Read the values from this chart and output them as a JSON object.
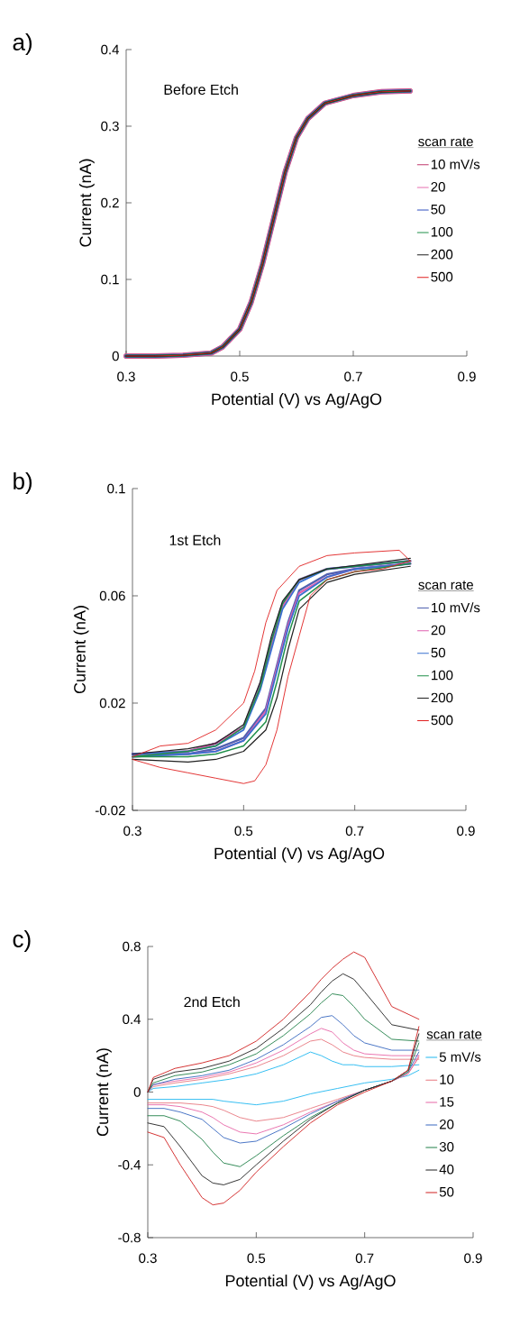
{
  "chart_data": [
    {
      "type": "line",
      "title": "a)",
      "xlabel": "Potential (V) vs Ag/AgO",
      "ylabel": "Current (nA)",
      "legend_title": "scan rate",
      "legend": "right",
      "annotations": [
        "Before Etch"
      ],
      "xlim": [
        0.3,
        0.9
      ],
      "xticks": [
        0.3,
        0.5,
        0.7,
        0.9
      ],
      "ylim": [
        0,
        0.4
      ],
      "yticks": [
        0,
        0.1,
        0.2,
        0.3,
        0.4
      ],
      "x": [
        0.3,
        0.35,
        0.4,
        0.45,
        0.47,
        0.5,
        0.52,
        0.54,
        0.56,
        0.58,
        0.6,
        0.62,
        0.65,
        0.7,
        0.75,
        0.8
      ],
      "series": [
        {
          "name": "10 mV/s",
          "color": "#c03a6e",
          "values": [
            0,
            0,
            0.001,
            0.004,
            0.012,
            0.035,
            0.07,
            0.12,
            0.18,
            0.24,
            0.285,
            0.31,
            0.33,
            0.34,
            0.345,
            0.346
          ]
        },
        {
          "name": "20",
          "color": "#e870b0",
          "values": [
            0,
            0,
            0.001,
            0.004,
            0.012,
            0.035,
            0.07,
            0.12,
            0.18,
            0.24,
            0.285,
            0.31,
            0.33,
            0.34,
            0.345,
            0.346
          ]
        },
        {
          "name": "50",
          "color": "#3050c0",
          "values": [
            0,
            0,
            0.001,
            0.004,
            0.012,
            0.035,
            0.07,
            0.12,
            0.18,
            0.24,
            0.285,
            0.31,
            0.33,
            0.34,
            0.345,
            0.346
          ]
        },
        {
          "name": "100",
          "color": "#20904a",
          "values": [
            0,
            0,
            0.001,
            0.004,
            0.012,
            0.035,
            0.07,
            0.12,
            0.18,
            0.24,
            0.285,
            0.31,
            0.33,
            0.34,
            0.345,
            0.346
          ]
        },
        {
          "name": "200",
          "color": "#202020",
          "values": [
            0,
            0,
            0.001,
            0.004,
            0.012,
            0.035,
            0.07,
            0.12,
            0.18,
            0.24,
            0.285,
            0.31,
            0.33,
            0.34,
            0.345,
            0.346
          ]
        },
        {
          "name": "500",
          "color": "#e02020",
          "values": [
            0,
            0,
            0.001,
            0.004,
            0.012,
            0.035,
            0.07,
            0.12,
            0.18,
            0.24,
            0.285,
            0.31,
            0.33,
            0.34,
            0.345,
            0.346
          ]
        }
      ]
    },
    {
      "type": "line",
      "title": "b)",
      "xlabel": "Potential (V) vs Ag/AgO",
      "ylabel": "Current (nA)",
      "legend_title": "scan rate",
      "legend": "right",
      "annotations": [
        "1st Etch"
      ],
      "xlim": [
        0.3,
        0.9
      ],
      "xticks": [
        0.3,
        0.5,
        0.7,
        0.9
      ],
      "ylim": [
        -0.02,
        0.1
      ],
      "yticks": [
        -0.02,
        0.02,
        0.06,
        0.1
      ],
      "series": [
        {
          "name": "10 mV/s",
          "color": "#5060b0",
          "x": [
            0.3,
            0.4,
            0.45,
            0.5,
            0.53,
            0.55,
            0.57,
            0.6,
            0.65,
            0.8
          ],
          "values": [
            0.001,
            0.002,
            0.005,
            0.011,
            0.027,
            0.043,
            0.057,
            0.066,
            0.07,
            0.073
          ]
        },
        {
          "color": "#5060b0",
          "x": [
            0.8,
            0.7,
            0.65,
            0.6,
            0.58,
            0.56,
            0.54,
            0.5,
            0.45,
            0.4,
            0.3
          ],
          "values": [
            0.072,
            0.07,
            0.068,
            0.062,
            0.05,
            0.034,
            0.018,
            0.007,
            0.003,
            0.001,
            0.001
          ]
        },
        {
          "name": "20",
          "color": "#e060b0",
          "x": [
            0.3,
            0.4,
            0.45,
            0.5,
            0.53,
            0.55,
            0.57,
            0.6,
            0.65,
            0.8
          ],
          "values": [
            0.001,
            0.002,
            0.005,
            0.011,
            0.026,
            0.042,
            0.056,
            0.066,
            0.07,
            0.073
          ]
        },
        {
          "color": "#e060b0",
          "x": [
            0.8,
            0.7,
            0.65,
            0.6,
            0.58,
            0.56,
            0.54,
            0.5,
            0.45,
            0.4,
            0.3
          ],
          "values": [
            0.072,
            0.07,
            0.067,
            0.061,
            0.049,
            0.033,
            0.017,
            0.006,
            0.002,
            0.001,
            0.0
          ]
        },
        {
          "name": "50",
          "color": "#3870d0",
          "x": [
            0.3,
            0.4,
            0.45,
            0.5,
            0.53,
            0.55,
            0.57,
            0.6,
            0.65,
            0.8
          ],
          "values": [
            0.001,
            0.002,
            0.004,
            0.01,
            0.025,
            0.04,
            0.055,
            0.065,
            0.07,
            0.073
          ]
        },
        {
          "color": "#3870d0",
          "x": [
            0.8,
            0.7,
            0.65,
            0.6,
            0.58,
            0.56,
            0.54,
            0.5,
            0.45,
            0.4,
            0.3
          ],
          "values": [
            0.072,
            0.07,
            0.067,
            0.06,
            0.048,
            0.032,
            0.016,
            0.006,
            0.002,
            0.001,
            0.0
          ]
        },
        {
          "name": "100",
          "color": "#20904a",
          "x": [
            0.3,
            0.4,
            0.45,
            0.5,
            0.53,
            0.55,
            0.57,
            0.6,
            0.65,
            0.8
          ],
          "values": [
            0.0,
            0.002,
            0.004,
            0.011,
            0.026,
            0.043,
            0.057,
            0.066,
            0.07,
            0.073
          ]
        },
        {
          "color": "#20904a",
          "x": [
            0.8,
            0.7,
            0.65,
            0.6,
            0.58,
            0.56,
            0.54,
            0.5,
            0.45,
            0.4,
            0.3
          ],
          "values": [
            0.072,
            0.069,
            0.066,
            0.058,
            0.045,
            0.028,
            0.013,
            0.004,
            0.001,
            0.0,
            0.0
          ]
        },
        {
          "name": "200",
          "color": "#202020",
          "x": [
            0.3,
            0.4,
            0.45,
            0.5,
            0.53,
            0.55,
            0.57,
            0.6,
            0.65,
            0.8
          ],
          "values": [
            0.001,
            0.003,
            0.005,
            0.012,
            0.028,
            0.045,
            0.058,
            0.066,
            0.07,
            0.074
          ]
        },
        {
          "color": "#202020",
          "x": [
            0.8,
            0.7,
            0.65,
            0.6,
            0.58,
            0.56,
            0.54,
            0.5,
            0.45,
            0.4,
            0.3
          ],
          "values": [
            0.071,
            0.068,
            0.065,
            0.055,
            0.04,
            0.022,
            0.01,
            0.002,
            -0.001,
            -0.002,
            -0.001
          ]
        },
        {
          "name": "500",
          "color": "#e02020",
          "x": [
            0.3,
            0.35,
            0.4,
            0.45,
            0.5,
            0.52,
            0.54,
            0.56,
            0.6,
            0.65,
            0.7,
            0.78,
            0.8
          ],
          "values": [
            0.0,
            0.004,
            0.005,
            0.01,
            0.02,
            0.032,
            0.05,
            0.062,
            0.071,
            0.075,
            0.076,
            0.077,
            0.073
          ]
        },
        {
          "color": "#e02020",
          "x": [
            0.8,
            0.75,
            0.7,
            0.65,
            0.62,
            0.6,
            0.58,
            0.56,
            0.54,
            0.52,
            0.5,
            0.45,
            0.4,
            0.35,
            0.3
          ],
          "values": [
            0.073,
            0.07,
            0.069,
            0.066,
            0.06,
            0.045,
            0.03,
            0.01,
            -0.003,
            -0.009,
            -0.01,
            -0.008,
            -0.006,
            -0.004,
            -0.001
          ]
        }
      ]
    },
    {
      "type": "line",
      "title": "c)",
      "xlabel": "Potential (V) vs Ag/AgO",
      "ylabel": "Current (nA)",
      "legend_title": "scan rate",
      "legend": "right",
      "annotations": [
        "2nd Etch"
      ],
      "xlim": [
        0.3,
        0.9
      ],
      "xticks": [
        0.3,
        0.5,
        0.7,
        0.9
      ],
      "ylim": [
        -0.8,
        0.8
      ],
      "yticks": [
        -0.8,
        -0.4,
        0,
        0.4,
        0.8
      ],
      "series": [
        {
          "name": "5 mV/s",
          "color": "#20b8f0",
          "x": [
            0.3,
            0.31,
            0.35,
            0.4,
            0.45,
            0.5,
            0.55,
            0.6,
            0.62,
            0.64,
            0.66,
            0.68,
            0.7,
            0.75,
            0.8
          ],
          "values": [
            0.0,
            0.02,
            0.03,
            0.05,
            0.07,
            0.1,
            0.15,
            0.22,
            0.2,
            0.17,
            0.15,
            0.15,
            0.14,
            0.14,
            0.15
          ]
        },
        {
          "color": "#20b8f0",
          "x": [
            0.8,
            0.78,
            0.75,
            0.7,
            0.65,
            0.6,
            0.55,
            0.5,
            0.47,
            0.44,
            0.42,
            0.4,
            0.36,
            0.33,
            0.3
          ],
          "values": [
            0.12,
            0.09,
            0.07,
            0.05,
            0.02,
            -0.01,
            -0.05,
            -0.07,
            -0.06,
            -0.05,
            -0.04,
            -0.04,
            -0.04,
            -0.04,
            -0.04
          ]
        },
        {
          "name": "10",
          "color": "#e87880",
          "x": [
            0.3,
            0.31,
            0.35,
            0.4,
            0.45,
            0.5,
            0.55,
            0.6,
            0.62,
            0.64,
            0.66,
            0.68,
            0.7,
            0.75,
            0.8
          ],
          "values": [
            0.0,
            0.03,
            0.05,
            0.07,
            0.1,
            0.14,
            0.2,
            0.28,
            0.29,
            0.26,
            0.22,
            0.2,
            0.19,
            0.18,
            0.18
          ]
        },
        {
          "color": "#e87880",
          "x": [
            0.8,
            0.78,
            0.75,
            0.7,
            0.65,
            0.6,
            0.55,
            0.5,
            0.47,
            0.44,
            0.42,
            0.4,
            0.36,
            0.33,
            0.3
          ],
          "values": [
            0.19,
            0.1,
            0.06,
            0.01,
            -0.04,
            -0.09,
            -0.14,
            -0.16,
            -0.14,
            -0.1,
            -0.08,
            -0.07,
            -0.06,
            -0.06,
            -0.06
          ]
        },
        {
          "name": "15",
          "color": "#e868a8",
          "x": [
            0.3,
            0.31,
            0.35,
            0.4,
            0.45,
            0.5,
            0.55,
            0.6,
            0.62,
            0.64,
            0.66,
            0.68,
            0.7,
            0.75,
            0.8
          ],
          "values": [
            0.0,
            0.04,
            0.06,
            0.08,
            0.11,
            0.16,
            0.23,
            0.32,
            0.35,
            0.33,
            0.27,
            0.23,
            0.21,
            0.2,
            0.2
          ]
        },
        {
          "color": "#e868a8",
          "x": [
            0.8,
            0.78,
            0.75,
            0.7,
            0.65,
            0.6,
            0.55,
            0.5,
            0.47,
            0.44,
            0.42,
            0.4,
            0.36,
            0.33,
            0.3
          ],
          "values": [
            0.2,
            0.1,
            0.06,
            0.01,
            -0.05,
            -0.11,
            -0.18,
            -0.23,
            -0.22,
            -0.18,
            -0.14,
            -0.11,
            -0.08,
            -0.07,
            -0.07
          ]
        },
        {
          "name": "20",
          "color": "#3868c0",
          "x": [
            0.3,
            0.31,
            0.35,
            0.4,
            0.45,
            0.5,
            0.55,
            0.6,
            0.62,
            0.64,
            0.66,
            0.68,
            0.7,
            0.75,
            0.8
          ],
          "values": [
            0.0,
            0.04,
            0.07,
            0.09,
            0.12,
            0.18,
            0.26,
            0.36,
            0.41,
            0.42,
            0.37,
            0.31,
            0.27,
            0.23,
            0.23
          ]
        },
        {
          "color": "#3868c0",
          "x": [
            0.8,
            0.78,
            0.75,
            0.7,
            0.65,
            0.6,
            0.55,
            0.5,
            0.47,
            0.44,
            0.42,
            0.4,
            0.36,
            0.33,
            0.3
          ],
          "values": [
            0.22,
            0.11,
            0.06,
            0.01,
            -0.05,
            -0.12,
            -0.2,
            -0.27,
            -0.28,
            -0.25,
            -0.2,
            -0.15,
            -0.11,
            -0.09,
            -0.09
          ]
        },
        {
          "name": "30",
          "color": "#208048",
          "x": [
            0.3,
            0.31,
            0.35,
            0.4,
            0.45,
            0.5,
            0.55,
            0.6,
            0.62,
            0.64,
            0.66,
            0.68,
            0.7,
            0.75,
            0.8
          ],
          "values": [
            0.0,
            0.05,
            0.09,
            0.11,
            0.15,
            0.21,
            0.31,
            0.43,
            0.49,
            0.54,
            0.53,
            0.47,
            0.4,
            0.29,
            0.28
          ]
        },
        {
          "color": "#208048",
          "x": [
            0.8,
            0.78,
            0.75,
            0.7,
            0.65,
            0.6,
            0.55,
            0.5,
            0.47,
            0.44,
            0.42,
            0.4,
            0.36,
            0.33,
            0.3
          ],
          "values": [
            0.27,
            0.11,
            0.06,
            0.01,
            -0.06,
            -0.14,
            -0.24,
            -0.35,
            -0.41,
            -0.39,
            -0.33,
            -0.26,
            -0.16,
            -0.13,
            -0.13
          ]
        },
        {
          "name": "40",
          "color": "#202020",
          "x": [
            0.3,
            0.31,
            0.35,
            0.4,
            0.45,
            0.5,
            0.55,
            0.6,
            0.62,
            0.64,
            0.66,
            0.68,
            0.7,
            0.75,
            0.8
          ],
          "values": [
            0.0,
            0.07,
            0.11,
            0.13,
            0.17,
            0.24,
            0.35,
            0.48,
            0.55,
            0.61,
            0.65,
            0.62,
            0.55,
            0.37,
            0.34
          ]
        },
        {
          "color": "#202020",
          "x": [
            0.8,
            0.78,
            0.75,
            0.7,
            0.65,
            0.6,
            0.55,
            0.5,
            0.47,
            0.44,
            0.42,
            0.4,
            0.36,
            0.33,
            0.3
          ],
          "values": [
            0.32,
            0.12,
            0.06,
            0.01,
            -0.06,
            -0.15,
            -0.27,
            -0.4,
            -0.48,
            -0.51,
            -0.5,
            -0.46,
            -0.3,
            -0.19,
            -0.17
          ]
        },
        {
          "name": "50",
          "color": "#d02020",
          "x": [
            0.3,
            0.31,
            0.35,
            0.4,
            0.45,
            0.5,
            0.55,
            0.6,
            0.62,
            0.64,
            0.66,
            0.68,
            0.7,
            0.75,
            0.8
          ],
          "values": [
            0.0,
            0.08,
            0.13,
            0.16,
            0.2,
            0.28,
            0.4,
            0.55,
            0.62,
            0.68,
            0.73,
            0.77,
            0.74,
            0.47,
            0.4
          ]
        },
        {
          "color": "#d02020",
          "x": [
            0.8,
            0.78,
            0.75,
            0.7,
            0.65,
            0.6,
            0.55,
            0.5,
            0.47,
            0.44,
            0.42,
            0.4,
            0.36,
            0.33,
            0.3
          ],
          "values": [
            0.36,
            0.12,
            0.06,
            0.0,
            -0.07,
            -0.17,
            -0.3,
            -0.44,
            -0.54,
            -0.61,
            -0.62,
            -0.58,
            -0.4,
            -0.25,
            -0.22
          ]
        }
      ]
    }
  ]
}
